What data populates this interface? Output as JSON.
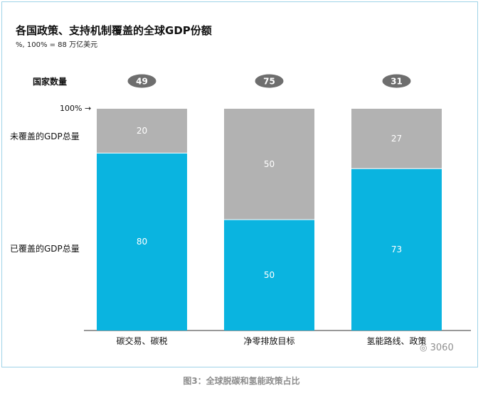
{
  "chart_data": {
    "type": "bar",
    "stacked": true,
    "title": "各国政策、支持机制覆盖的全球GDP份额",
    "subtitle": "%, 100% = 88 万亿美元",
    "categories": [
      "碳交易、碳税",
      "净零排放目标",
      "氢能路线、政策"
    ],
    "country_count_label": "国家数量",
    "country_counts": [
      49,
      75,
      31
    ],
    "top_label": "100%",
    "series": [
      {
        "name": "已覆盖的GDP总量",
        "values": [
          80,
          50,
          73
        ],
        "color": "#0ab4e0"
      },
      {
        "name": "未覆盖的GDP总量",
        "values": [
          20,
          50,
          27
        ],
        "color": "#b2b2b2"
      }
    ],
    "ylim": [
      0,
      100
    ],
    "grid": false
  },
  "caption": "图3：全球脱碳和氢能政策占比",
  "watermark": "3060"
}
